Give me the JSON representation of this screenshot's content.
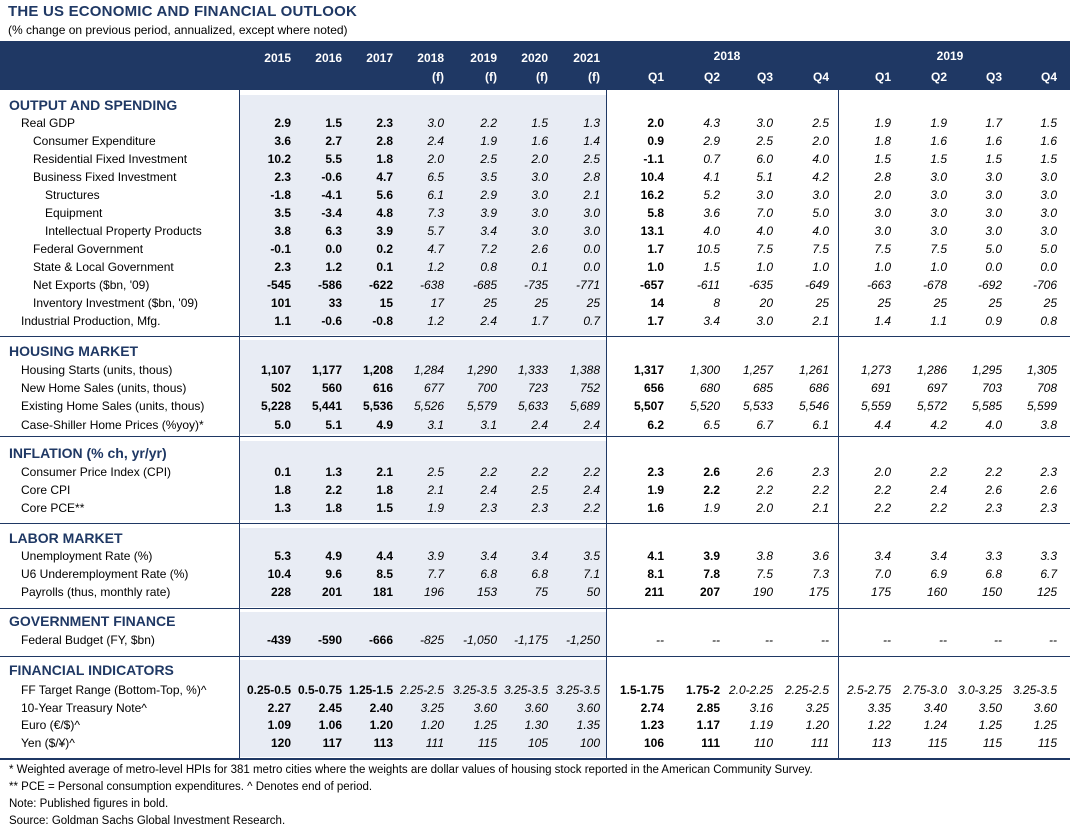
{
  "title": "THE US ECONOMIC AND FINANCIAL OUTLOOK",
  "subtitle": "(% change on previous period, annualized, except where noted)",
  "headers": {
    "years": [
      "2015",
      "2016",
      "2017",
      "2018",
      "2019",
      "2020",
      "2021"
    ],
    "year_sub": [
      "",
      "",
      "",
      "(f)",
      "(f)",
      "(f)",
      "(f)"
    ],
    "group_2018": "2018",
    "group_2019": "2019",
    "quarters": [
      "Q1",
      "Q2",
      "Q3",
      "Q4",
      "Q1",
      "Q2",
      "Q3",
      "Q4"
    ]
  },
  "sections": [
    {
      "title": "OUTPUT AND SPENDING",
      "rows": [
        {
          "label": "Real GDP",
          "indent": 0,
          "values": [
            "2.9",
            "1.5",
            "2.3",
            "3.0",
            "2.2",
            "1.5",
            "1.3",
            "2.0",
            "4.3",
            "3.0",
            "2.5",
            "1.9",
            "1.9",
            "1.7",
            "1.5"
          ],
          "bold_q": 1
        },
        {
          "label": "Consumer Expenditure",
          "indent": 1,
          "values": [
            "3.6",
            "2.7",
            "2.8",
            "2.4",
            "1.9",
            "1.6",
            "1.4",
            "0.9",
            "2.9",
            "2.5",
            "2.0",
            "1.8",
            "1.6",
            "1.6",
            "1.6"
          ],
          "bold_q": 1
        },
        {
          "label": "Residential Fixed Investment",
          "indent": 1,
          "values": [
            "10.2",
            "5.5",
            "1.8",
            "2.0",
            "2.5",
            "2.0",
            "2.5",
            "-1.1",
            "0.7",
            "6.0",
            "4.0",
            "1.5",
            "1.5",
            "1.5",
            "1.5"
          ],
          "bold_q": 1
        },
        {
          "label": "Business Fixed Investment",
          "indent": 1,
          "values": [
            "2.3",
            "-0.6",
            "4.7",
            "6.5",
            "3.5",
            "3.0",
            "2.8",
            "10.4",
            "4.1",
            "5.1",
            "4.2",
            "2.8",
            "3.0",
            "3.0",
            "3.0"
          ],
          "bold_q": 1
        },
        {
          "label": "Structures",
          "indent": 2,
          "values": [
            "-1.8",
            "-4.1",
            "5.6",
            "6.1",
            "2.9",
            "3.0",
            "2.1",
            "16.2",
            "5.2",
            "3.0",
            "3.0",
            "2.0",
            "3.0",
            "3.0",
            "3.0"
          ],
          "bold_q": 1
        },
        {
          "label": "Equipment",
          "indent": 2,
          "values": [
            "3.5",
            "-3.4",
            "4.8",
            "7.3",
            "3.9",
            "3.0",
            "3.0",
            "5.8",
            "3.6",
            "7.0",
            "5.0",
            "3.0",
            "3.0",
            "3.0",
            "3.0"
          ],
          "bold_q": 1
        },
        {
          "label": "Intellectual Property Products",
          "indent": 2,
          "values": [
            "3.8",
            "6.3",
            "3.9",
            "5.7",
            "3.4",
            "3.0",
            "3.0",
            "13.1",
            "4.0",
            "4.0",
            "4.0",
            "3.0",
            "3.0",
            "3.0",
            "3.0"
          ],
          "bold_q": 1
        },
        {
          "label": "Federal Government",
          "indent": 1,
          "values": [
            "-0.1",
            "0.0",
            "0.2",
            "4.7",
            "7.2",
            "2.6",
            "0.0",
            "1.7",
            "10.5",
            "7.5",
            "7.5",
            "7.5",
            "7.5",
            "5.0",
            "5.0"
          ],
          "bold_q": 1
        },
        {
          "label": "State & Local Government",
          "indent": 1,
          "values": [
            "2.3",
            "1.2",
            "0.1",
            "1.2",
            "0.8",
            "0.1",
            "0.0",
            "1.0",
            "1.5",
            "1.0",
            "1.0",
            "1.0",
            "1.0",
            "0.0",
            "0.0"
          ],
          "bold_q": 1
        },
        {
          "label": "Net Exports ($bn, '09)",
          "indent": 1,
          "values": [
            "-545",
            "-586",
            "-622",
            "-638",
            "-685",
            "-735",
            "-771",
            "-657",
            "-611",
            "-635",
            "-649",
            "-663",
            "-678",
            "-692",
            "-706"
          ],
          "bold_q": 1
        },
        {
          "label": "Inventory Investment ($bn, '09)",
          "indent": 1,
          "values": [
            "101",
            "33",
            "15",
            "17",
            "25",
            "25",
            "25",
            "14",
            "8",
            "20",
            "25",
            "25",
            "25",
            "25",
            "25"
          ],
          "bold_q": 1
        },
        {
          "label": "Industrial Production, Mfg.",
          "indent": 0,
          "values": [
            "1.1",
            "-0.6",
            "-0.8",
            "1.2",
            "2.4",
            "1.7",
            "0.7",
            "1.7",
            "3.4",
            "3.0",
            "2.1",
            "1.4",
            "1.1",
            "0.9",
            "0.8"
          ],
          "bold_q": 1
        }
      ]
    },
    {
      "title": "HOUSING MARKET",
      "rows": [
        {
          "label": "Housing Starts (units, thous)",
          "indent": 0,
          "values": [
            "1,107",
            "1,177",
            "1,208",
            "1,284",
            "1,290",
            "1,333",
            "1,388",
            "1,317",
            "1,300",
            "1,257",
            "1,261",
            "1,273",
            "1,286",
            "1,295",
            "1,305"
          ],
          "bold_q": 1
        },
        {
          "label": "New Home Sales (units, thous)",
          "indent": 0,
          "values": [
            "502",
            "560",
            "616",
            "677",
            "700",
            "723",
            "752",
            "656",
            "680",
            "685",
            "686",
            "691",
            "697",
            "703",
            "708"
          ],
          "bold_q": 1
        },
        {
          "label": "Existing Home Sales (units, thous)",
          "indent": 0,
          "values": [
            "5,228",
            "5,441",
            "5,536",
            "5,526",
            "5,579",
            "5,633",
            "5,689",
            "5,507",
            "5,520",
            "5,533",
            "5,546",
            "5,559",
            "5,572",
            "5,585",
            "5,599"
          ],
          "bold_q": 1
        },
        {
          "label": "Case-Shiller Home Prices (%yoy)*",
          "indent": 0,
          "values": [
            "5.0",
            "5.1",
            "4.9",
            "3.1",
            "3.1",
            "2.4",
            "2.4",
            "6.2",
            "6.5",
            "6.7",
            "6.1",
            "4.4",
            "4.2",
            "4.0",
            "3.8"
          ],
          "bold_q": 1
        }
      ]
    },
    {
      "title": "INFLATION (% ch, yr/yr)",
      "rows": [
        {
          "label": "Consumer Price Index (CPI)",
          "indent": 0,
          "values": [
            "0.1",
            "1.3",
            "2.1",
            "2.5",
            "2.2",
            "2.2",
            "2.2",
            "2.3",
            "2.6",
            "2.6",
            "2.3",
            "2.0",
            "2.2",
            "2.2",
            "2.3"
          ],
          "bold_q": 2
        },
        {
          "label": "Core CPI",
          "indent": 0,
          "values": [
            "1.8",
            "2.2",
            "1.8",
            "2.1",
            "2.4",
            "2.5",
            "2.4",
            "1.9",
            "2.2",
            "2.2",
            "2.2",
            "2.2",
            "2.4",
            "2.6",
            "2.6"
          ],
          "bold_q": 2
        },
        {
          "label": "Core PCE**",
          "indent": 0,
          "values": [
            "1.3",
            "1.8",
            "1.5",
            "1.9",
            "2.3",
            "2.3",
            "2.2",
            "1.6",
            "1.9",
            "2.0",
            "2.1",
            "2.2",
            "2.2",
            "2.3",
            "2.3"
          ],
          "bold_q": 1
        }
      ]
    },
    {
      "title": "LABOR MARKET",
      "rows": [
        {
          "label": "Unemployment Rate (%)",
          "indent": 0,
          "values": [
            "5.3",
            "4.9",
            "4.4",
            "3.9",
            "3.4",
            "3.4",
            "3.5",
            "4.1",
            "3.9",
            "3.8",
            "3.6",
            "3.4",
            "3.4",
            "3.3",
            "3.3"
          ],
          "bold_q": 2
        },
        {
          "label": "U6 Underemployment Rate (%)",
          "indent": 0,
          "values": [
            "10.4",
            "9.6",
            "8.5",
            "7.7",
            "6.8",
            "6.8",
            "7.1",
            "8.1",
            "7.8",
            "7.5",
            "7.3",
            "7.0",
            "6.9",
            "6.8",
            "6.7"
          ],
          "bold_q": 2
        },
        {
          "label": "Payrolls (thus, monthly rate)",
          "indent": 0,
          "values": [
            "228",
            "201",
            "181",
            "196",
            "153",
            "75",
            "50",
            "211",
            "207",
            "190",
            "175",
            "175",
            "160",
            "150",
            "125"
          ],
          "bold_q": 2
        }
      ]
    },
    {
      "title": "GOVERNMENT FINANCE",
      "rows": [
        {
          "label": "Federal Budget (FY, $bn)",
          "indent": 0,
          "values": [
            "-439",
            "-590",
            "-666",
            "-825",
            "-1,050",
            "-1,175",
            "-1,250",
            "--",
            "--",
            "--",
            "--",
            "--",
            "--",
            "--",
            "--"
          ],
          "bold_q": 0
        }
      ]
    },
    {
      "title": "FINANCIAL INDICATORS",
      "rows": [
        {
          "label": "FF Target Range (Bottom-Top, %)^",
          "indent": 0,
          "values": [
            "0.25-0.5",
            "0.5-0.75",
            "1.25-1.5",
            "2.25-2.5",
            "3.25-3.5",
            "3.25-3.5",
            "3.25-3.5",
            "1.5-1.75",
            "1.75-2",
            "2.0-2.25",
            "2.25-2.5",
            "2.5-2.75",
            "2.75-3.0",
            "3.0-3.25",
            "3.25-3.5"
          ],
          "bold_q": 2
        },
        {
          "label": "10-Year Treasury Note^",
          "indent": 0,
          "values": [
            "2.27",
            "2.45",
            "2.40",
            "3.25",
            "3.60",
            "3.60",
            "3.60",
            "2.74",
            "2.85",
            "3.16",
            "3.25",
            "3.35",
            "3.40",
            "3.50",
            "3.60"
          ],
          "bold_q": 2
        },
        {
          "label": "Euro (€/$)^",
          "indent": 0,
          "values": [
            "1.09",
            "1.06",
            "1.20",
            "1.20",
            "1.25",
            "1.30",
            "1.35",
            "1.23",
            "1.17",
            "1.19",
            "1.20",
            "1.22",
            "1.24",
            "1.25",
            "1.25"
          ],
          "bold_q": 2
        },
        {
          "label": "Yen ($/¥)^",
          "indent": 0,
          "values": [
            "120",
            "117",
            "113",
            "111",
            "115",
            "105",
            "100",
            "106",
            "111",
            "110",
            "111",
            "113",
            "115",
            "115",
            "115"
          ],
          "bold_q": 2
        }
      ]
    }
  ],
  "footnotes": [
    "* Weighted average of metro-level HPIs for 381 metro cities where the weights are dollar values of housing stock reported in the American Community Survey.",
    "** PCE = Personal consumption expenditures.  ^ Denotes end of period.",
    "Note: Published figures in bold.",
    "Source: Goldman Sachs Global Investment Research."
  ],
  "colors": {
    "navy": "#1f3864",
    "shade": "#e8ecf4"
  }
}
